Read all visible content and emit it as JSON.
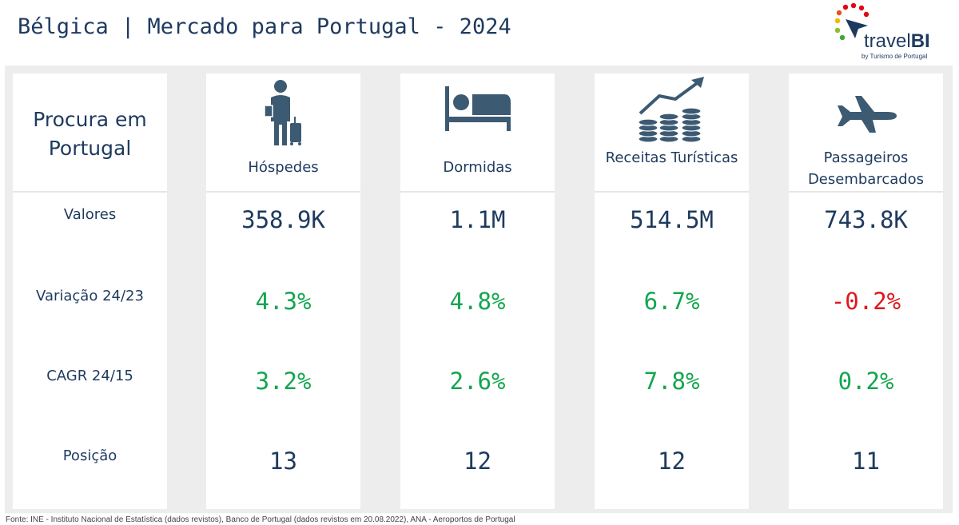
{
  "header": {
    "title": "Bélgica | Mercado para Portugal - 2024"
  },
  "logo": {
    "name": "travel",
    "name_bold": "BI",
    "subtitle": "by Turismo de Portugal"
  },
  "row_labels": {
    "section_title": "Procura em Portugal",
    "valores": "Valores",
    "variacao": "Variação 24/23",
    "cagr": "CAGR 24/15",
    "posicao": "Posição"
  },
  "metrics": [
    {
      "label": "Hóspedes",
      "icon": "traveler-icon",
      "valor": "358.9K",
      "variacao": "4.3%",
      "cagr": "3.2%",
      "posicao": "13"
    },
    {
      "label": "Dormidas",
      "icon": "bed-icon",
      "valor": "1.1M",
      "variacao": "4.8%",
      "cagr": "2.6%",
      "posicao": "12"
    },
    {
      "label": "Receitas Turísticas",
      "icon": "coins-growth-icon",
      "valor": "514.5M",
      "variacao": "6.7%",
      "cagr": "7.8%",
      "posicao": "12"
    },
    {
      "label": "Passageiros Desembarcados",
      "icon": "airplane-icon",
      "valor": "743.8K",
      "variacao": "-0.2%",
      "cagr": "0.2%",
      "posicao": "11"
    }
  ],
  "colors": {
    "positive": "#12a64d",
    "negative": "#e0161b",
    "text": "#1e3a5f"
  },
  "footer": {
    "source": "Fonte: INE - Instituto Nacional de Estatística (dados revistos), Banco de Portugal (dados revistos em 20.08.2022), ANA - Aeroportos de Portugal"
  }
}
